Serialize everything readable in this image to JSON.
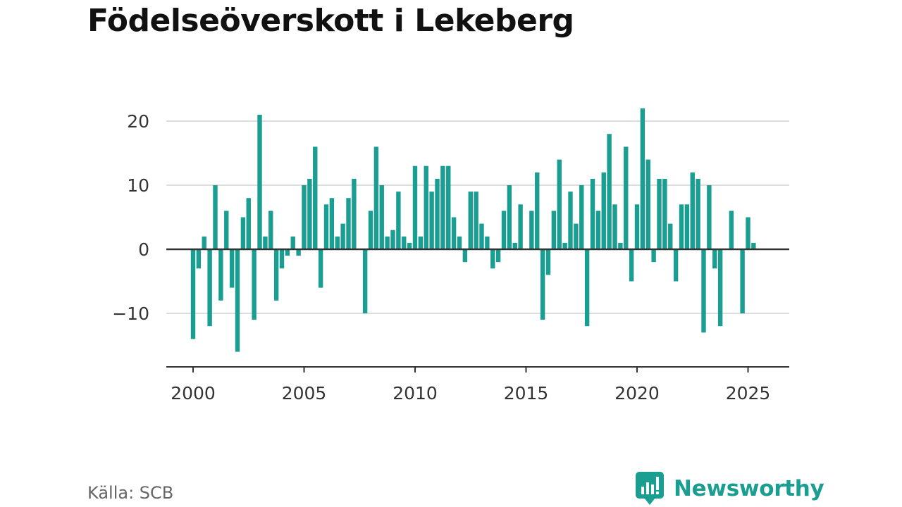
{
  "title": "Födelseöverskott i Lekeberg",
  "source": "Källa: SCB",
  "brand": "Newsworthy",
  "colors": {
    "bar": "#1b9e92",
    "grid": "#dddddd",
    "axis": "#333333",
    "brand": "#1b9e92"
  },
  "icons": {
    "brand_logo": "newsworthy-chart-bubble-icon"
  },
  "chart_data": {
    "type": "bar",
    "frequency": "quarterly",
    "title": "Födelseöverskott i Lekeberg",
    "xlabel": "",
    "ylabel": "",
    "xlim": [
      1999.2,
      2026.7
    ],
    "ylim": [
      -18,
      25
    ],
    "grid": true,
    "legend": "none",
    "x_ticks": [
      2000,
      2005,
      2010,
      2015,
      2020,
      2025
    ],
    "y_ticks": [
      -10,
      0,
      10,
      20
    ],
    "y_tick_labels": [
      "−10",
      "0",
      "10",
      "20"
    ],
    "x": [
      2000.0,
      2000.25,
      2000.5,
      2000.75,
      2001.0,
      2001.25,
      2001.5,
      2001.75,
      2002.0,
      2002.25,
      2002.5,
      2002.75,
      2003.0,
      2003.25,
      2003.5,
      2003.75,
      2004.0,
      2004.25,
      2004.5,
      2004.75,
      2005.0,
      2005.25,
      2005.5,
      2005.75,
      2006.0,
      2006.25,
      2006.5,
      2006.75,
      2007.0,
      2007.25,
      2007.5,
      2007.75,
      2008.0,
      2008.25,
      2008.5,
      2008.75,
      2009.0,
      2009.25,
      2009.5,
      2009.75,
      2010.0,
      2010.25,
      2010.5,
      2010.75,
      2011.0,
      2011.25,
      2011.5,
      2011.75,
      2012.0,
      2012.25,
      2012.5,
      2012.75,
      2013.0,
      2013.25,
      2013.5,
      2013.75,
      2014.0,
      2014.25,
      2014.5,
      2014.75,
      2015.0,
      2015.25,
      2015.5,
      2015.75,
      2016.0,
      2016.25,
      2016.5,
      2016.75,
      2017.0,
      2017.25,
      2017.5,
      2017.75,
      2018.0,
      2018.25,
      2018.5,
      2018.75,
      2019.0,
      2019.25,
      2019.5,
      2019.75,
      2020.0,
      2020.25,
      2020.5,
      2020.75,
      2021.0,
      2021.25,
      2021.5,
      2021.75,
      2022.0,
      2022.25,
      2022.5,
      2022.75,
      2023.0,
      2023.25,
      2023.5,
      2023.75,
      2024.0,
      2024.25,
      2024.5,
      2024.75,
      2025.0,
      2025.25,
      2025.5
    ],
    "values": [
      -14,
      -3,
      2,
      -12,
      10,
      -8,
      6,
      -6,
      -16,
      5,
      8,
      -11,
      21,
      2,
      6,
      -8,
      -3,
      -1,
      2,
      -1,
      10,
      11,
      16,
      -6,
      7,
      8,
      2,
      4,
      8,
      11,
      0,
      -10,
      6,
      16,
      10,
      2,
      3,
      9,
      2,
      1,
      13,
      2,
      13,
      9,
      11,
      13,
      13,
      5,
      2,
      -2,
      9,
      9,
      4,
      2,
      -3,
      -2,
      6,
      10,
      1,
      7,
      0,
      6,
      12,
      -11,
      -4,
      6,
      14,
      1,
      9,
      4,
      10,
      -12,
      11,
      6,
      12,
      18,
      7,
      1,
      16,
      -5,
      7,
      22,
      14,
      -2,
      11,
      11,
      4,
      -5,
      7,
      7,
      12,
      11,
      -13,
      10,
      -3,
      -12,
      0,
      6,
      0,
      -10,
      5,
      1,
      0
    ]
  }
}
